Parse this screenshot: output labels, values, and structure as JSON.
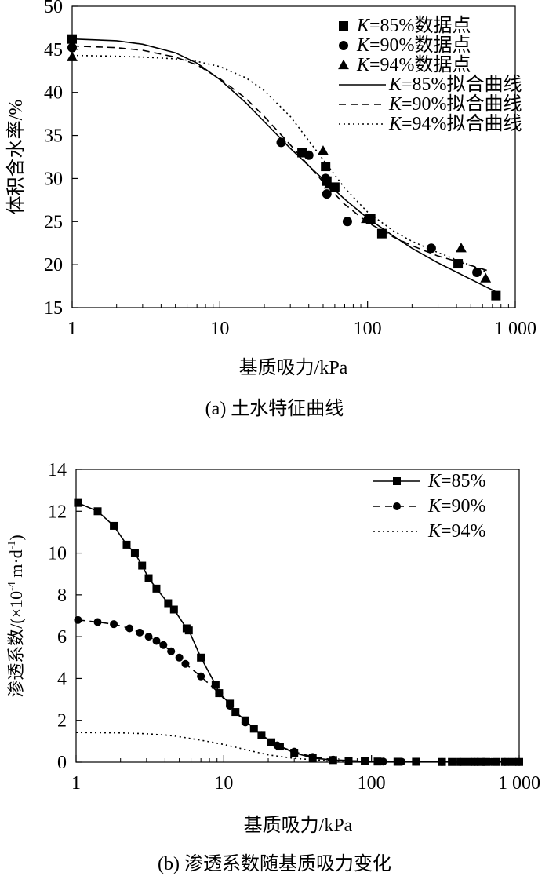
{
  "chart_data": [
    {
      "type": "scatter",
      "caption": "(a) 土水特征曲线",
      "xlabel": "基质吸力/kPa",
      "ylabel": "体积含水率/%",
      "xscale": "log",
      "xlim": [
        1,
        1000
      ],
      "ylim": [
        15,
        50
      ],
      "xticks": [
        1,
        10,
        100,
        1000
      ],
      "xtick_labels": [
        "1",
        "10",
        "100",
        "1 000"
      ],
      "yticks": [
        15,
        20,
        25,
        30,
        35,
        40,
        45,
        50
      ],
      "legend_position": "top-right",
      "series": [
        {
          "name": "=85%数据点",
          "marker": "square",
          "points": [
            [
              1,
              46.2
            ],
            [
              36,
              33.0
            ],
            [
              52,
              31.4
            ],
            [
              53,
              29.7
            ],
            [
              60,
              29.0
            ],
            [
              105,
              25.3
            ],
            [
              125,
              23.6
            ],
            [
              410,
              20.1
            ],
            [
              740,
              16.4
            ]
          ]
        },
        {
          "name": "=90%数据点",
          "marker": "circle",
          "points": [
            [
              1,
              45.2
            ],
            [
              26,
              34.2
            ],
            [
              40,
              32.7
            ],
            [
              52,
              30.0
            ],
            [
              53,
              28.2
            ],
            [
              73,
              25.0
            ],
            [
              270,
              21.9
            ],
            [
              550,
              19.1
            ]
          ]
        },
        {
          "name": "=94%数据点",
          "marker": "triangle",
          "points": [
            [
              1,
              44.1
            ],
            [
              50,
              33.2
            ],
            [
              55,
              29.3
            ],
            [
              98,
              25.3
            ],
            [
              430,
              21.9
            ],
            [
              630,
              18.4
            ]
          ]
        },
        {
          "name": "=85%拟合曲线",
          "style": "solid",
          "points": [
            [
              1,
              46.2
            ],
            [
              2,
              46.0
            ],
            [
              3,
              45.6
            ],
            [
              5,
              44.6
            ],
            [
              7,
              43.4
            ],
            [
              10,
              41.5
            ],
            [
              15,
              38.8
            ],
            [
              20,
              36.6
            ],
            [
              30,
              33.5
            ],
            [
              50,
              29.9
            ],
            [
              70,
              27.6
            ],
            [
              100,
              25.4
            ],
            [
              150,
              23.3
            ],
            [
              200,
              21.9
            ],
            [
              300,
              20.2
            ],
            [
              500,
              18.3
            ],
            [
              750,
              16.8
            ]
          ]
        },
        {
          "name": "=90%拟合曲线",
          "style": "dashed",
          "points": [
            [
              1,
              45.4
            ],
            [
              2,
              45.2
            ],
            [
              3,
              44.9
            ],
            [
              5,
              44.1
            ],
            [
              7,
              43.2
            ],
            [
              10,
              41.6
            ],
            [
              15,
              39.3
            ],
            [
              20,
              37.2
            ],
            [
              30,
              33.9
            ],
            [
              50,
              29.6
            ],
            [
              70,
              27.0
            ],
            [
              100,
              24.9
            ],
            [
              150,
              23.2
            ],
            [
              200,
              22.2
            ],
            [
              300,
              21.0
            ],
            [
              500,
              19.9
            ],
            [
              650,
              19.3
            ]
          ]
        },
        {
          "name": "=94%拟合曲线",
          "style": "dotted",
          "points": [
            [
              1,
              44.3
            ],
            [
              2,
              44.2
            ],
            [
              3,
              44.1
            ],
            [
              5,
              43.9
            ],
            [
              7,
              43.6
            ],
            [
              10,
              43.0
            ],
            [
              15,
              41.7
            ],
            [
              20,
              40.2
            ],
            [
              30,
              37.2
            ],
            [
              50,
              32.2
            ],
            [
              70,
              28.9
            ],
            [
              100,
              26.1
            ],
            [
              150,
              23.9
            ],
            [
              200,
              22.7
            ],
            [
              300,
              21.4
            ],
            [
              500,
              19.9
            ],
            [
              650,
              19.1
            ]
          ]
        }
      ]
    },
    {
      "type": "line",
      "caption": "(b) 渗透系数随基质吸力变化",
      "xlabel": "基质吸力/kPa",
      "ylabel_prefix": "渗透系数/(×10",
      "ylabel_exp1": "-4",
      "ylabel_mid": " m·d",
      "ylabel_exp2": "-1",
      "ylabel_suffix": ")",
      "xscale": "log",
      "xlim": [
        1,
        1000
      ],
      "ylim": [
        0,
        14
      ],
      "xticks": [
        1,
        10,
        100,
        1000
      ],
      "xtick_labels": [
        "1",
        "10",
        "100",
        "1 000"
      ],
      "yticks": [
        0,
        2,
        4,
        6,
        8,
        10,
        12,
        14
      ],
      "legend_position": "top-right",
      "series": [
        {
          "name": "=85%",
          "style": "solid",
          "marker": "square",
          "x": [
            1.03,
            1.4,
            1.8,
            2.2,
            2.5,
            2.8,
            3.1,
            3.5,
            4.2,
            4.6,
            5.6,
            5.8,
            7.0,
            8.8,
            9.3,
            11.0,
            12.0,
            14.0,
            16.0,
            18.0,
            21.0,
            24.0,
            30.0,
            40.0,
            55.0,
            70.0,
            90.0,
            110.0,
            150.0,
            200.0,
            300.0,
            350.0,
            400.0,
            450.0,
            500.0,
            550.0,
            600.0,
            700.0,
            800.0,
            900.0,
            1000.0
          ],
          "y": [
            12.4,
            12.0,
            11.3,
            10.4,
            10.0,
            9.4,
            8.8,
            8.3,
            7.6,
            7.3,
            6.4,
            6.3,
            5.0,
            3.7,
            3.3,
            2.8,
            2.4,
            2.0,
            1.6,
            1.3,
            0.95,
            0.75,
            0.45,
            0.2,
            0.1,
            0.06,
            0.04,
            0.03,
            0.02,
            0.02,
            0.01,
            0.01,
            0.01,
            0.01,
            0.01,
            0.01,
            0.01,
            0.01,
            0.01,
            0.01,
            0.01
          ]
        },
        {
          "name": "=90%",
          "style": "dashed",
          "marker": "circle",
          "x": [
            1.03,
            1.4,
            1.8,
            2.3,
            2.7,
            3.1,
            3.5,
            3.9,
            4.4,
            5.0,
            5.5,
            7.0,
            9.3,
            11.0,
            14.0,
            18.0,
            23.0,
            30.0,
            40.0,
            55.0,
            70.0,
            90.0,
            120.0,
            160.0,
            200.0,
            300.0,
            400.0,
            500.0,
            650.0,
            800.0,
            1000.0
          ],
          "y": [
            6.8,
            6.7,
            6.6,
            6.4,
            6.2,
            6.0,
            5.8,
            5.6,
            5.3,
            5.0,
            4.7,
            4.1,
            3.3,
            2.7,
            1.9,
            1.3,
            0.8,
            0.5,
            0.25,
            0.12,
            0.07,
            0.05,
            0.03,
            0.02,
            0.02,
            0.01,
            0.01,
            0.01,
            0.01,
            0.01,
            0.01
          ]
        },
        {
          "name": "=94%",
          "style": "dotted",
          "marker": "none",
          "x": [
            1,
            2,
            3,
            4,
            5,
            7,
            10,
            14,
            20,
            30,
            50,
            80,
            120,
            200,
            400,
            700,
            1000
          ],
          "y": [
            1.42,
            1.4,
            1.36,
            1.3,
            1.22,
            1.05,
            0.85,
            0.6,
            0.35,
            0.18,
            0.07,
            0.04,
            0.02,
            0.01,
            0.01,
            0.01,
            0.01
          ]
        }
      ]
    }
  ],
  "legend_prefix": "K"
}
